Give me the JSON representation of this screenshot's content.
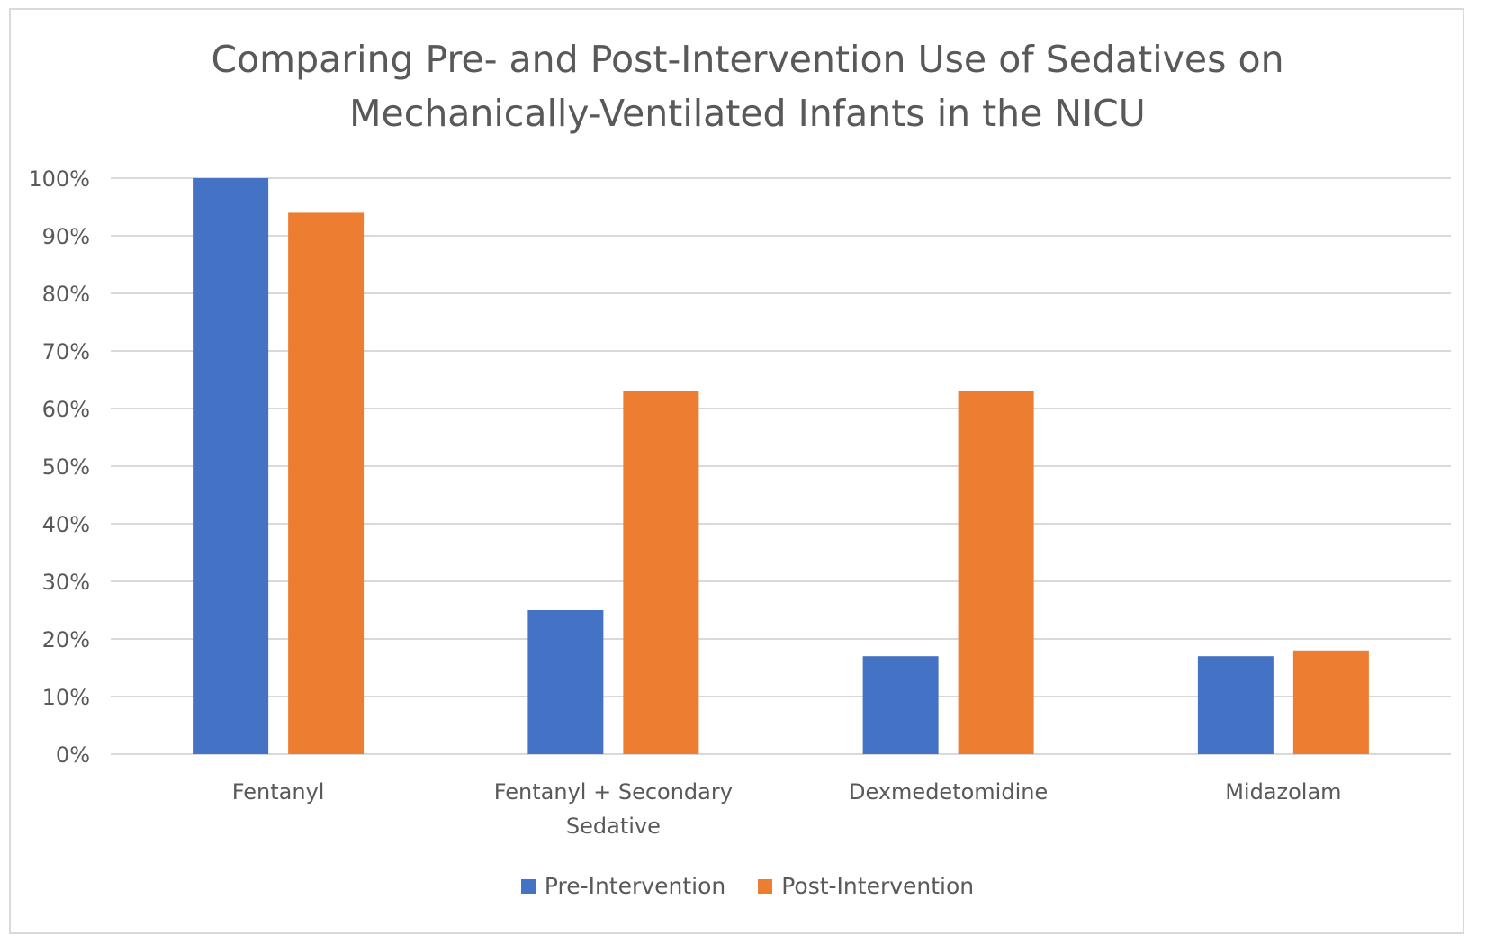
{
  "chart_data": {
    "type": "bar",
    "title": "Comparing Pre- and Post-Intervention Use of Sedatives on Mechanically-Ventilated Infants in the NICU",
    "title_lines": [
      "Comparing Pre- and Post-Intervention Use of Sedatives on",
      "Mechanically-Ventilated Infants in the NICU"
    ],
    "categories": [
      "Fentanyl",
      "Fentanyl + Secondary Sedative",
      "Dexmedetomidine",
      "Midazolam"
    ],
    "category_lines": [
      [
        "Fentanyl"
      ],
      [
        "Fentanyl + Secondary",
        "Sedative"
      ],
      [
        "Dexmedetomidine"
      ],
      [
        "Midazolam"
      ]
    ],
    "series": [
      {
        "name": "Pre-Intervention",
        "color": "#4472c4",
        "values": [
          100,
          25,
          17,
          17
        ]
      },
      {
        "name": "Post-Intervention",
        "color": "#ed7d31",
        "values": [
          94,
          63,
          63,
          18
        ]
      }
    ],
    "ylim": [
      0,
      100
    ],
    "yticks": [
      0,
      10,
      20,
      30,
      40,
      50,
      60,
      70,
      80,
      90,
      100
    ],
    "ytick_labels": [
      "0%",
      "10%",
      "20%",
      "30%",
      "40%",
      "50%",
      "60%",
      "70%",
      "80%",
      "90%",
      "100%"
    ],
    "xlabel": "",
    "ylabel": "",
    "grid": true,
    "gridline_color": "#d9d9d9",
    "legend_position": "bottom"
  }
}
